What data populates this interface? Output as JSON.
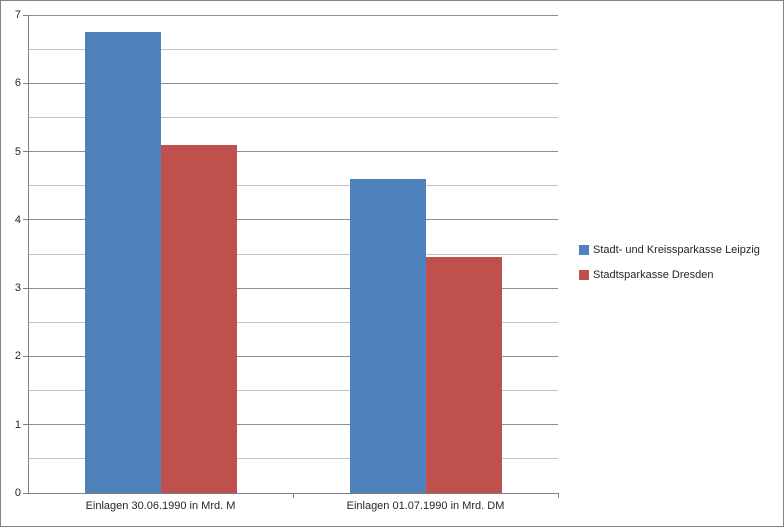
{
  "chart_data": {
    "type": "bar",
    "title": "",
    "xlabel": "",
    "ylabel": "",
    "categories": [
      "Einlagen 30.06.1990 in Mrd. M",
      "Einlagen 01.07.1990 in Mrd. DM"
    ],
    "series": [
      {
        "name": "Stadt- und Kreissparkasse Leipzig",
        "color": "#4F81BD",
        "values": [
          6.75,
          4.6
        ]
      },
      {
        "name": "Stadtsparkasse Dresden",
        "color": "#C0504D",
        "values": [
          5.1,
          3.45
        ]
      }
    ],
    "ylim": [
      0,
      7
    ],
    "yticks": [
      0,
      1,
      2,
      3,
      4,
      5,
      6,
      7
    ],
    "y_major_step": 1,
    "y_minor_step": 0.5,
    "grid": "horizontal major+minor",
    "legend_position": "right"
  },
  "colors": {
    "series_leipzig": "#4F81BD",
    "series_dresden": "#C0504D",
    "major_gridline": "#8C8C8C",
    "minor_gridline": "#C3C3C3",
    "axis_line": "#7F7F7F",
    "chart_border": "#848484",
    "text": "#262626",
    "background": "#FFFFFF"
  }
}
